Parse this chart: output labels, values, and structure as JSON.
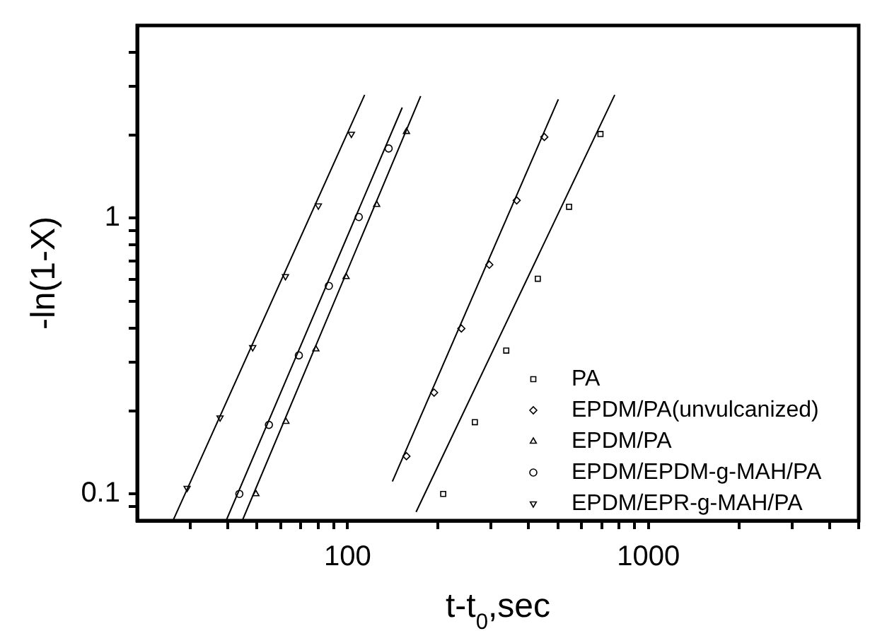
{
  "chart_data": {
    "type": "scatter",
    "xlabel": "t-t$_{0}$,sec",
    "ylabel": "-ln(1-X)",
    "log": "xy",
    "grid": false,
    "legend": "bottom right",
    "xlim": [
      20,
      5000
    ],
    "ylim": [
      0.08,
      5
    ],
    "xticks": [
      {
        "value": 30,
        "label": null
      },
      {
        "value": 40,
        "label": null
      },
      {
        "value": 50,
        "label": null
      },
      {
        "value": 60,
        "label": null
      },
      {
        "value": 70,
        "label": null
      },
      {
        "value": 80,
        "label": null
      },
      {
        "value": 90,
        "label": null
      },
      100,
      {
        "value": 200,
        "label": null
      },
      {
        "value": 300,
        "label": null
      },
      {
        "value": 400,
        "label": null
      },
      {
        "value": 500,
        "label": null
      },
      {
        "value": 600,
        "label": null
      },
      {
        "value": 700,
        "label": null
      },
      {
        "value": 800,
        "label": null
      },
      {
        "value": 900,
        "label": null
      },
      1000,
      {
        "value": 2000,
        "label": null
      },
      {
        "value": 3000,
        "label": null
      },
      {
        "value": 4000,
        "label": null
      },
      {
        "value": 5000,
        "label": null
      }
    ],
    "yticks": [
      {
        "value": 0.09,
        "label": null
      },
      0.1,
      {
        "value": 0.2,
        "label": null
      },
      {
        "value": 0.3,
        "label": null
      },
      {
        "value": 0.4,
        "label": null
      },
      {
        "value": 0.5,
        "label": null
      },
      {
        "value": 0.6,
        "label": null
      },
      {
        "value": 0.7,
        "label": null
      },
      {
        "value": 0.8,
        "label": null
      },
      {
        "value": 0.9,
        "label": null
      },
      1,
      {
        "value": 2,
        "label": null
      },
      {
        "value": 3,
        "label": null
      },
      {
        "value": 4,
        "label": null
      }
    ],
    "series": [
      {
        "name": "PA",
        "color": "#000000",
        "marker": "square",
        "x": [
          208,
          265,
          337,
          429,
          545,
          693
        ],
        "values": [
          0.1,
          0.182,
          0.331,
          0.603,
          1.1,
          2.02
        ]
      },
      {
        "name": "EPDM/PA(unvulcanized)",
        "color": "#000000",
        "marker": "diamond",
        "x": [
          157,
          194,
          239,
          296,
          365,
          451
        ],
        "values": [
          0.137,
          0.233,
          0.398,
          0.678,
          1.16,
          1.97
        ]
      },
      {
        "name": "EPDM/PA",
        "color": "#000000",
        "marker": "triangle",
        "x": [
          49.6,
          62.4,
          78.5,
          98.9,
          125,
          157
        ],
        "values": [
          0.1,
          0.183,
          0.335,
          0.613,
          1.12,
          2.06
        ]
      },
      {
        "name": "EPDM/EPDM-g-MAH/PA",
        "color": "#000000",
        "marker": "circle",
        "x": [
          43.7,
          54.8,
          68.9,
          86.7,
          109,
          137
        ],
        "values": [
          0.1,
          0.178,
          0.318,
          0.568,
          1.01,
          1.79
        ]
      },
      {
        "name": "EPDM/EPR-g-MAH/PA",
        "color": "#000000",
        "marker": "triangle-down",
        "x": [
          29.3,
          37.7,
          48.4,
          62.2,
          80,
          103
        ],
        "values": [
          0.105,
          0.189,
          0.34,
          0.615,
          1.11,
          2.02
        ]
      },
      {
        "type": "line",
        "color": "#000000",
        "marker": "none",
        "x": [
          26.3,
          114
        ],
        "values": [
          0.08,
          2.8
        ]
      },
      {
        "type": "line",
        "color": "#000000",
        "marker": "none",
        "x": [
          39.5,
          152
        ],
        "values": [
          0.08,
          2.52
        ]
      },
      {
        "type": "line",
        "color": "#000000",
        "marker": "none",
        "x": [
          44.7,
          175
        ],
        "values": [
          0.08,
          2.77
        ]
      },
      {
        "type": "line",
        "color": "#000000",
        "marker": "none",
        "x": [
          141,
          502
        ],
        "values": [
          0.111,
          2.7
        ]
      },
      {
        "type": "line",
        "color": "#000000",
        "marker": "none",
        "x": [
          169,
          773
        ],
        "values": [
          0.086,
          2.8
        ]
      }
    ]
  }
}
